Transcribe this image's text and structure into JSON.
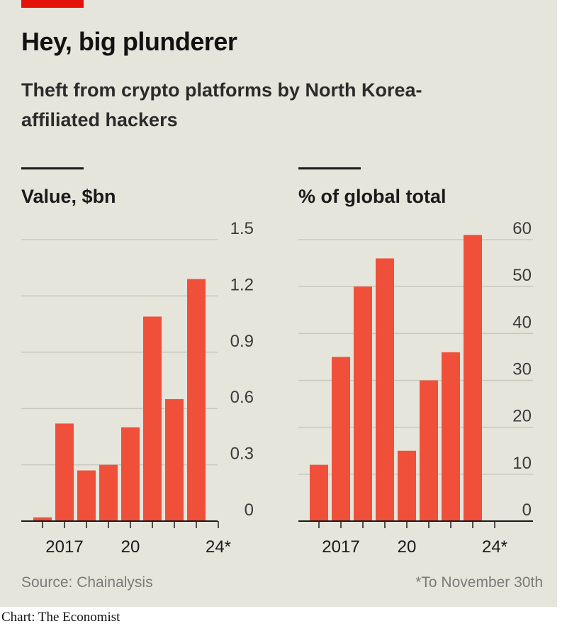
{
  "title": "Hey, big plunderer",
  "subtitle": "Theft from crypto platforms by North Korea-affiliated hackers",
  "source": "Source: Chainalysis",
  "footnote": "*To November 30th",
  "credit": "Chart: The Economist",
  "colors": {
    "bar": "#f0503a",
    "accent": "#e3120b",
    "panel": "#e6e5dc",
    "grid": "#c8c8c0"
  },
  "chart_data": [
    {
      "type": "bar",
      "title": "Value, $bn",
      "x": [
        2016,
        2017,
        2018,
        2019,
        2020,
        2021,
        2022,
        2023,
        2024
      ],
      "x_tick_labels": [
        {
          "x": 2017,
          "label": "2017"
        },
        {
          "x": 2020,
          "label": "20"
        },
        {
          "x": 2024,
          "label": "24*"
        }
      ],
      "values": [
        0.02,
        0.52,
        0.27,
        0.3,
        0.5,
        1.09,
        0.65,
        1.29,
        null
      ],
      "ylim": [
        0,
        1.5
      ],
      "y_ticks": [
        0,
        0.3,
        0.6,
        0.9,
        1.2,
        1.5
      ],
      "y_tick_labels": [
        "0",
        "0.3",
        "0.6",
        "0.9",
        "1.2",
        "1.5"
      ],
      "grid": true
    },
    {
      "type": "bar",
      "title": "% of global total",
      "x": [
        2016,
        2017,
        2018,
        2019,
        2020,
        2021,
        2022,
        2023,
        2024
      ],
      "x_tick_labels": [
        {
          "x": 2017,
          "label": "2017"
        },
        {
          "x": 2020,
          "label": "20"
        },
        {
          "x": 2024,
          "label": "24*"
        }
      ],
      "values": [
        12,
        35,
        50,
        56,
        15,
        30,
        36,
        61,
        null
      ],
      "ylim": [
        0,
        60
      ],
      "y_ticks": [
        0,
        10,
        20,
        30,
        40,
        50,
        60
      ],
      "y_tick_labels": [
        "0",
        "10",
        "20",
        "30",
        "40",
        "50",
        "60"
      ],
      "grid": true
    }
  ]
}
